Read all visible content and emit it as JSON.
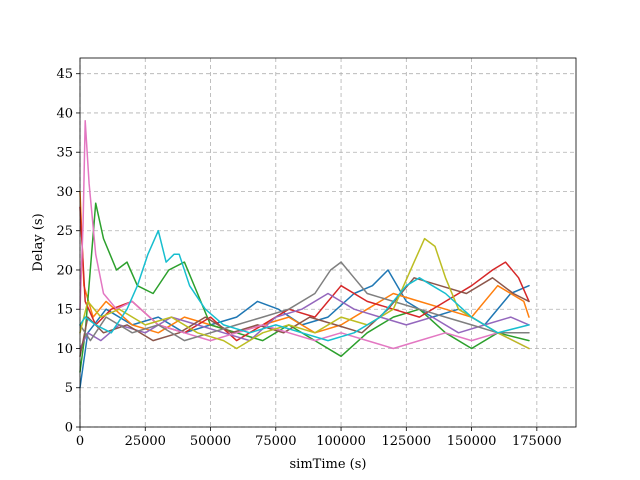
{
  "chart_data": {
    "type": "line",
    "title": "",
    "xlabel": "simTime (s)",
    "ylabel": "Delay (s)",
    "xlim": [
      0,
      190000
    ],
    "ylim": [
      0,
      47
    ],
    "xticks": [
      0,
      25000,
      50000,
      75000,
      100000,
      125000,
      150000,
      175000
    ],
    "xtick_labels": [
      "0",
      "25000",
      "50000",
      "75000",
      "100000",
      "125000",
      "150000",
      "175000"
    ],
    "yticks": [
      0,
      5,
      10,
      15,
      20,
      25,
      30,
      35,
      40,
      45
    ],
    "ytick_labels": [
      "0",
      "5",
      "10",
      "15",
      "20",
      "25",
      "30",
      "35",
      "40",
      "45"
    ],
    "grid": true,
    "legend": "none",
    "series": [
      {
        "color": "#1f77b4",
        "x": [
          0,
          3000,
          10000,
          20000,
          30000,
          40000,
          50000,
          60000,
          68000,
          76000,
          85000,
          95000,
          105000,
          112000,
          118000,
          125000,
          135000,
          145000,
          155000,
          165000,
          172000
        ],
        "y": [
          5,
          12,
          15,
          13,
          14,
          12,
          13,
          14,
          16,
          15,
          13,
          14,
          17,
          18,
          20,
          16,
          14,
          15,
          13,
          17,
          18
        ]
      },
      {
        "color": "#ff7f0e",
        "x": [
          0,
          1500,
          5000,
          10000,
          20000,
          30000,
          40000,
          50000,
          60000,
          70000,
          80000,
          90000,
          100000,
          110000,
          120000,
          130000,
          140000,
          150000,
          160000,
          170000,
          172000
        ],
        "y": [
          30,
          18,
          14,
          16,
          13,
          12,
          14,
          13,
          12,
          13,
          14,
          12,
          13,
          15,
          17,
          16,
          15,
          14,
          18,
          16,
          14
        ]
      },
      {
        "color": "#2ca02c",
        "x": [
          0,
          2000,
          6000,
          9000,
          14000,
          18000,
          22000,
          28000,
          34000,
          40000,
          45000,
          50000,
          60000,
          70000,
          80000,
          90000,
          100000,
          110000,
          120000,
          130000,
          140000,
          150000,
          160000,
          172000
        ],
        "y": [
          7,
          12,
          28.5,
          24,
          20,
          21,
          18,
          17,
          20,
          21,
          17,
          13,
          12,
          11,
          13,
          11,
          9,
          12,
          14,
          15,
          12,
          10,
          12,
          11
        ]
      },
      {
        "color": "#d62728",
        "x": [
          0,
          2000,
          6000,
          12000,
          20000,
          30000,
          40000,
          50000,
          60000,
          70000,
          80000,
          90000,
          100000,
          110000,
          120000,
          130000,
          140000,
          150000,
          158000,
          163000,
          168000,
          172000
        ],
        "y": [
          28,
          16,
          13,
          15,
          16,
          13,
          12,
          14,
          11,
          13,
          15,
          14,
          18,
          16,
          15,
          14,
          16,
          18,
          20,
          21,
          19,
          16
        ]
      },
      {
        "color": "#9467bd",
        "x": [
          0,
          3000,
          8000,
          15000,
          25000,
          35000,
          45000,
          55000,
          65000,
          75000,
          85000,
          95000,
          105000,
          115000,
          125000,
          135000,
          145000,
          155000,
          165000,
          172000
        ],
        "y": [
          10,
          12,
          11,
          13,
          12,
          14,
          13,
          12,
          11,
          14,
          15,
          17,
          15,
          14,
          13,
          14,
          12,
          13,
          14,
          13
        ]
      },
      {
        "color": "#8c564b",
        "x": [
          0,
          3000,
          9000,
          18000,
          28000,
          38000,
          48000,
          58000,
          68000,
          78000,
          88000,
          98000,
          108000,
          118000,
          128000,
          138000,
          148000,
          158000,
          166000,
          172000
        ],
        "y": [
          9,
          14,
          12,
          13,
          11,
          12,
          14,
          12,
          13,
          12,
          14,
          13,
          12,
          15,
          19,
          18,
          17,
          19,
          17,
          16
        ]
      },
      {
        "color": "#e377c2",
        "x": [
          0,
          1200,
          2000,
          3500,
          6000,
          9000,
          14000,
          20000,
          30000,
          40000,
          50000,
          60000,
          70000,
          80000,
          90000,
          100000,
          110000,
          120000,
          130000,
          140000,
          150000,
          160000,
          172000
        ],
        "y": [
          15,
          26,
          39,
          31,
          22,
          17,
          15,
          16,
          13,
          12,
          11,
          12,
          13,
          12,
          11,
          12,
          11,
          10,
          11,
          12,
          11,
          12,
          10
        ]
      },
      {
        "color": "#7f7f7f",
        "x": [
          0,
          4000,
          10000,
          20000,
          30000,
          40000,
          50000,
          60000,
          70000,
          80000,
          90000,
          96000,
          100000,
          105000,
          110000,
          120000,
          130000,
          140000,
          150000,
          160000,
          172000
        ],
        "y": [
          13,
          11,
          14,
          12,
          13,
          11,
          12,
          13,
          14,
          15,
          17,
          20,
          21,
          19,
          17,
          16,
          15,
          14,
          13,
          12,
          12
        ]
      },
      {
        "color": "#bcbd22",
        "x": [
          0,
          3000,
          8000,
          15000,
          25000,
          35000,
          45000,
          55000,
          60000,
          70000,
          80000,
          90000,
          100000,
          110000,
          120000,
          128000,
          132000,
          136000,
          140000,
          145000,
          150000,
          160000,
          172000
        ],
        "y": [
          12,
          16,
          14,
          15,
          13,
          14,
          12,
          11,
          10,
          12,
          13,
          12,
          14,
          13,
          15,
          21,
          24,
          23,
          19,
          15,
          14,
          12,
          10
        ]
      },
      {
        "color": "#17becf",
        "x": [
          0,
          2000,
          6000,
          12000,
          18000,
          22000,
          26000,
          30000,
          33000,
          36000,
          38000,
          42000,
          48000,
          55000,
          65000,
          75000,
          85000,
          95000,
          105000,
          115000,
          125000,
          130000,
          135000,
          140000,
          150000,
          160000,
          172000
        ],
        "y": [
          13,
          14,
          13,
          12,
          15,
          18,
          22,
          25,
          21,
          22,
          22,
          18,
          15,
          13,
          12,
          13,
          12,
          11,
          12,
          14,
          18,
          19,
          18,
          17,
          14,
          12,
          13
        ]
      }
    ]
  }
}
